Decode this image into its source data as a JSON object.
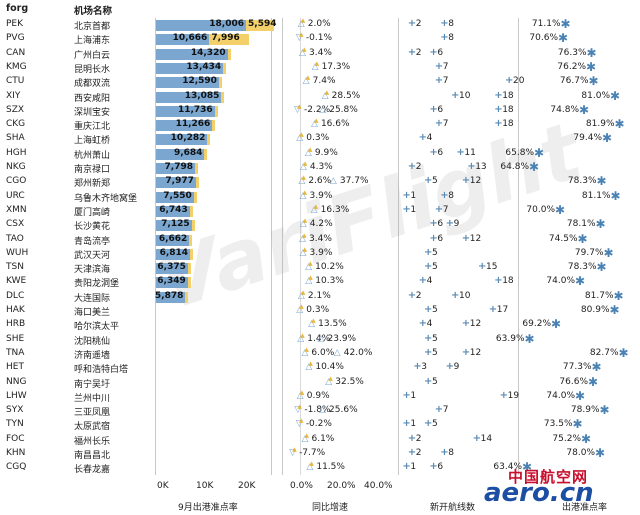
{
  "header": {
    "code_col": "forg",
    "name_col": "机场名称"
  },
  "colors": {
    "bar_blue": "#7aa6cf",
    "bar_yellow": "#f3d06a",
    "star": "#4a82b4",
    "logo_red": "#c8102e",
    "logo_blue": "#1c4fa3"
  },
  "rows": [
    {
      "code": "PEK",
      "name": "北京首都",
      "v1": "18,006",
      "v2": "5,594",
      "growth": "2.0%",
      "growth2": "",
      "r1": "2",
      "r2": "8",
      "rate": "71.1%",
      "star": true
    },
    {
      "code": "PVG",
      "name": "上海浦东",
      "v1": "10,666",
      "v2": "7,996",
      "growth": "-0.1%",
      "growth2": "",
      "r1": "",
      "r2": "8",
      "rate": "70.6%",
      "star": true
    },
    {
      "code": "CAN",
      "name": "广州白云",
      "v1": "14,320",
      "v2": "",
      "growth": "3.4%",
      "growth2": "",
      "r1": "2",
      "r2": "6",
      "rate": "76.3%",
      "star": true
    },
    {
      "code": "KMG",
      "name": "昆明长水",
      "v1": "13,434",
      "v2": "",
      "growth": "17.3%",
      "growth2": "",
      "r1": "",
      "r2": "7",
      "rate": "76.2%",
      "star": true
    },
    {
      "code": "CTU",
      "name": "成都双流",
      "v1": "12,590",
      "v2": "",
      "growth": "7.4%",
      "growth2": "",
      "r1": "7",
      "r2": "20",
      "rate": "76.7%",
      "star": true
    },
    {
      "code": "XIY",
      "name": "西安咸阳",
      "v1": "13,085",
      "v2": "",
      "growth": "28.5%",
      "growth2": "",
      "r1": "10",
      "r2": "18",
      "rate": "81.0%",
      "star": true
    },
    {
      "code": "SZX",
      "name": "深圳宝安",
      "v1": "11,736",
      "v2": "",
      "growth": "-2.2%",
      "growth2": "25.8%",
      "r1": "6",
      "r2": "18",
      "rate": "74.8%",
      "star": true
    },
    {
      "code": "CKG",
      "name": "重庆江北",
      "v1": "11,266",
      "v2": "",
      "growth": "16.6%",
      "growth2": "",
      "r1": "7",
      "r2": "18",
      "rate": "81.9%",
      "star": true
    },
    {
      "code": "SHA",
      "name": "上海虹桥",
      "v1": "10,282",
      "v2": "",
      "growth": "0.3%",
      "growth2": "",
      "r1": "4",
      "r2": "",
      "rate": "79.4%",
      "star": true
    },
    {
      "code": "HGH",
      "name": "杭州萧山",
      "v1": "9,684",
      "v2": "",
      "growth": "9.9%",
      "growth2": "",
      "r1": "6",
      "r2": "11",
      "rate": "65.8%",
      "star": true
    },
    {
      "code": "NKG",
      "name": "南京禄口",
      "v1": "7,798",
      "v2": "",
      "growth": "4.3%",
      "growth2": "",
      "r1": "2",
      "r2": "13",
      "rate": "64.8%",
      "star": true
    },
    {
      "code": "CGO",
      "name": "郑州新郑",
      "v1": "7,977",
      "v2": "",
      "growth": "2.6%",
      "growth2": "37.7%",
      "r1": "5",
      "r2": "12",
      "rate": "78.3%",
      "star": true
    },
    {
      "code": "URC",
      "name": "乌鲁木齐地窝堡",
      "v1": "7,550",
      "v2": "",
      "growth": "3.9%",
      "growth2": "",
      "r1": "1",
      "r2": "8",
      "rate": "81.1%",
      "star": true
    },
    {
      "code": "XMN",
      "name": "厦门高崎",
      "v1": "6,743",
      "v2": "",
      "growth": "16.3%",
      "growth2": "",
      "r1": "1",
      "r2": "7",
      "rate": "70.0%",
      "star": true
    },
    {
      "code": "CSX",
      "name": "长沙黄花",
      "v1": "7,125",
      "v2": "",
      "growth": "4.2%",
      "growth2": "",
      "r1": "6",
      "r2": "9",
      "rate": "78.1%",
      "star": true
    },
    {
      "code": "TAO",
      "name": "青岛流亭",
      "v1": "6,662",
      "v2": "",
      "growth": "3.4%",
      "growth2": "",
      "r1": "6",
      "r2": "12",
      "rate": "74.5%",
      "star": true
    },
    {
      "code": "WUH",
      "name": "武汉天河",
      "v1": "6,814",
      "v2": "",
      "growth": "3.9%",
      "growth2": "",
      "r1": "5",
      "r2": "",
      "rate": "79.7%",
      "star": true
    },
    {
      "code": "TSN",
      "name": "天津滨海",
      "v1": "6,375",
      "v2": "",
      "growth": "10.2%",
      "growth2": "",
      "r1": "5",
      "r2": "15",
      "rate": "78.3%",
      "star": true
    },
    {
      "code": "KWE",
      "name": "贵阳龙洞堡",
      "v1": "6,349",
      "v2": "",
      "growth": "10.3%",
      "growth2": "",
      "r1": "4",
      "r2": "18",
      "rate": "74.0%",
      "star": true
    },
    {
      "code": "DLC",
      "name": "大连国际",
      "v1": "5,878",
      "v2": "",
      "growth": "2.1%",
      "growth2": "",
      "r1": "2",
      "r2": "10",
      "rate": "81.7%",
      "star": true
    },
    {
      "code": "HAK",
      "name": "海口美兰",
      "v1": "",
      "v2": "",
      "growth": "0.3%",
      "growth2": "",
      "r1": "5",
      "r2": "17",
      "rate": "80.9%",
      "star": true
    },
    {
      "code": "HRB",
      "name": "哈尔滨太平",
      "v1": "",
      "v2": "",
      "growth": "13.5%",
      "growth2": "",
      "r1": "4",
      "r2": "12",
      "rate": "69.2%",
      "star": true
    },
    {
      "code": "SHE",
      "name": "沈阳桃仙",
      "v1": "",
      "v2": "",
      "growth": "1.4%",
      "growth2": "23.9%",
      "r1": "5",
      "r2": "",
      "rate": "63.9%",
      "star": true
    },
    {
      "code": "TNA",
      "name": "济南遥墙",
      "v1": "",
      "v2": "",
      "growth": "6.0%",
      "growth2": "42.0%",
      "r1": "5",
      "r2": "12",
      "rate": "82.7%",
      "star": true
    },
    {
      "code": "HET",
      "name": "呼和浩特白塔",
      "v1": "",
      "v2": "",
      "growth": "10.4%",
      "growth2": "",
      "r1": "3",
      "r2": "9",
      "rate": "77.3%",
      "star": true
    },
    {
      "code": "NNG",
      "name": "南宁吴圩",
      "v1": "",
      "v2": "",
      "growth": "32.5%",
      "growth2": "",
      "r1": "5",
      "r2": "",
      "rate": "76.6%",
      "star": true
    },
    {
      "code": "LHW",
      "name": "兰州中川",
      "v1": "",
      "v2": "",
      "growth": "0.9%",
      "growth2": "",
      "r1": "1",
      "r2": "19",
      "rate": "74.0%",
      "star": true
    },
    {
      "code": "SYX",
      "name": "三亚凤凰",
      "v1": "",
      "v2": "",
      "growth": "-1.8%",
      "growth2": "25.6%",
      "r1": "7",
      "r2": "",
      "rate": "78.9%",
      "star": true
    },
    {
      "code": "TYN",
      "name": "太原武宿",
      "v1": "",
      "v2": "",
      "growth": "-0.2%",
      "growth2": "",
      "r1": "1",
      "r2": "5",
      "rate": "73.5%",
      "star": true
    },
    {
      "code": "FOC",
      "name": "福州长乐",
      "v1": "",
      "v2": "",
      "growth": "6.1%",
      "growth2": "",
      "r1": "2",
      "r2": "14",
      "rate": "75.2%",
      "star": true
    },
    {
      "code": "KHN",
      "name": "南昌昌北",
      "v1": "",
      "v2": "",
      "growth": "-7.7%",
      "growth2": "",
      "r1": "2",
      "r2": "8",
      "rate": "78.0%",
      "star": true
    },
    {
      "code": "CGQ",
      "name": "长春龙嘉",
      "v1": "",
      "v2": "",
      "growth": "11.5%",
      "growth2": "",
      "r1": "1",
      "r2": "6",
      "rate": "63.4%",
      "star": true
    }
  ],
  "axes": {
    "bar_ticks": [
      "0K",
      "10K",
      "20K"
    ],
    "growth_ticks": [
      "0.0%",
      "20.0%",
      "40.0%"
    ],
    "bar_title": "9月出港准点率",
    "growth_title": "同比增速",
    "routes_title": "新开航线数",
    "rate_title": "出港准点率"
  },
  "watermark": "VariFlight",
  "logo": {
    "cn": "中国航空网",
    "en": "aero.cn"
  }
}
